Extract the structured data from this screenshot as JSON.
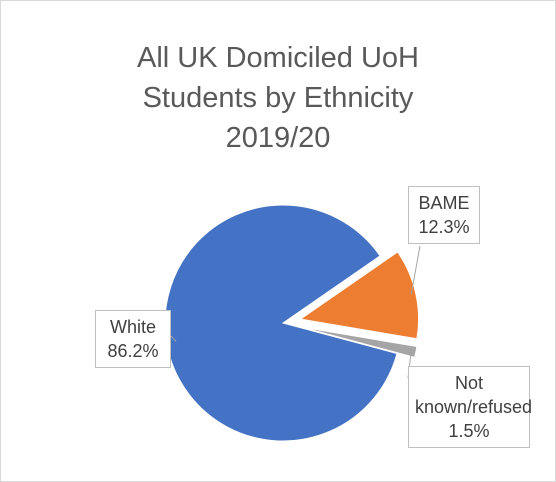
{
  "chart_data": {
    "type": "pie",
    "title": "All UK Domiciled UoH Students by Ethnicity 2019/20",
    "categories": [
      "White",
      "BAME",
      "Not known/refused"
    ],
    "values": [
      86.2,
      12.3,
      1.5
    ],
    "value_labels": [
      "86.2%",
      "12.3%",
      "1.5%"
    ],
    "colors": [
      "#4472c4",
      "#ed7d31",
      "#a5a5a5"
    ]
  }
}
